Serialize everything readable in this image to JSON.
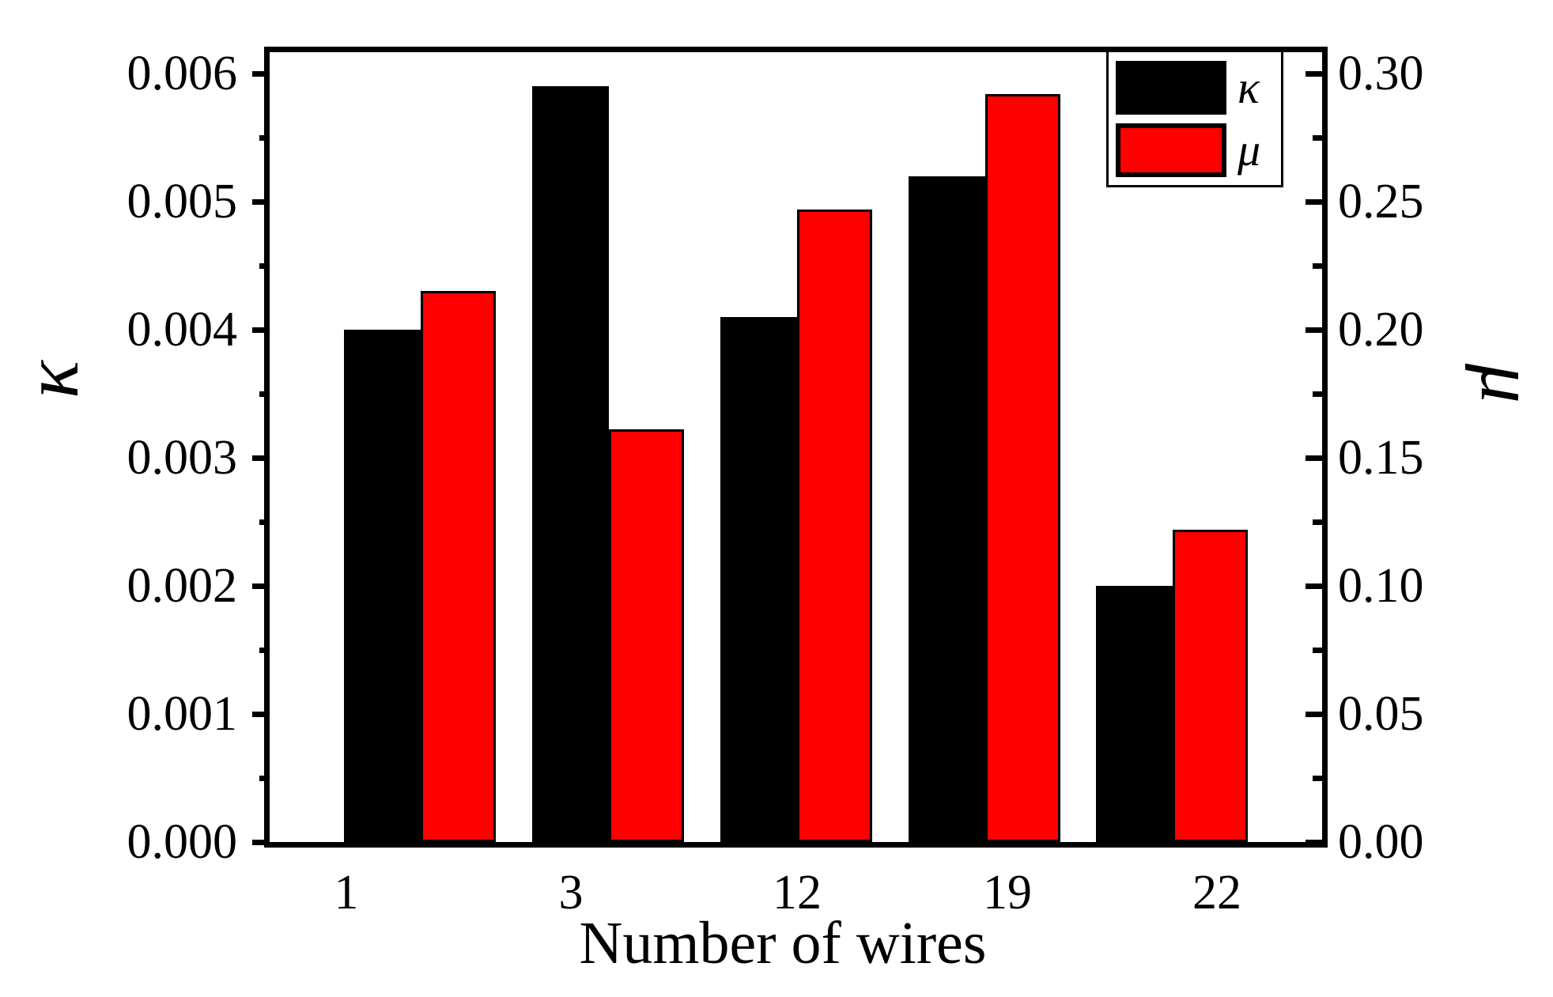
{
  "chart_data": {
    "type": "bar",
    "xlabel": "Number of wires",
    "categories": [
      "1",
      "3",
      "12",
      "19",
      "22"
    ],
    "series": [
      {
        "name": "κ",
        "axis": "left",
        "color": "#000000",
        "values": [
          0.004,
          0.0059,
          0.0041,
          0.0052,
          0.002
        ]
      },
      {
        "name": "μ",
        "axis": "right",
        "color": "#ff0000",
        "values": [
          0.215,
          0.161,
          0.247,
          0.292,
          0.122
        ]
      }
    ],
    "left_axis": {
      "label": "κ",
      "range": [
        0,
        0.006
      ],
      "tick_step": 0.001,
      "tick_labels": [
        "0.000",
        "0.001",
        "0.002",
        "0.003",
        "0.004",
        "0.005",
        "0.006"
      ]
    },
    "right_axis": {
      "label": "μ",
      "range": [
        0,
        0.3
      ],
      "tick_step": 0.05,
      "tick_labels": [
        "0.00",
        "0.05",
        "0.10",
        "0.15",
        "0.20",
        "0.25",
        "0.30"
      ]
    },
    "legend": {
      "position": "top-right",
      "entries": [
        "κ",
        "μ"
      ]
    },
    "grid": false
  }
}
